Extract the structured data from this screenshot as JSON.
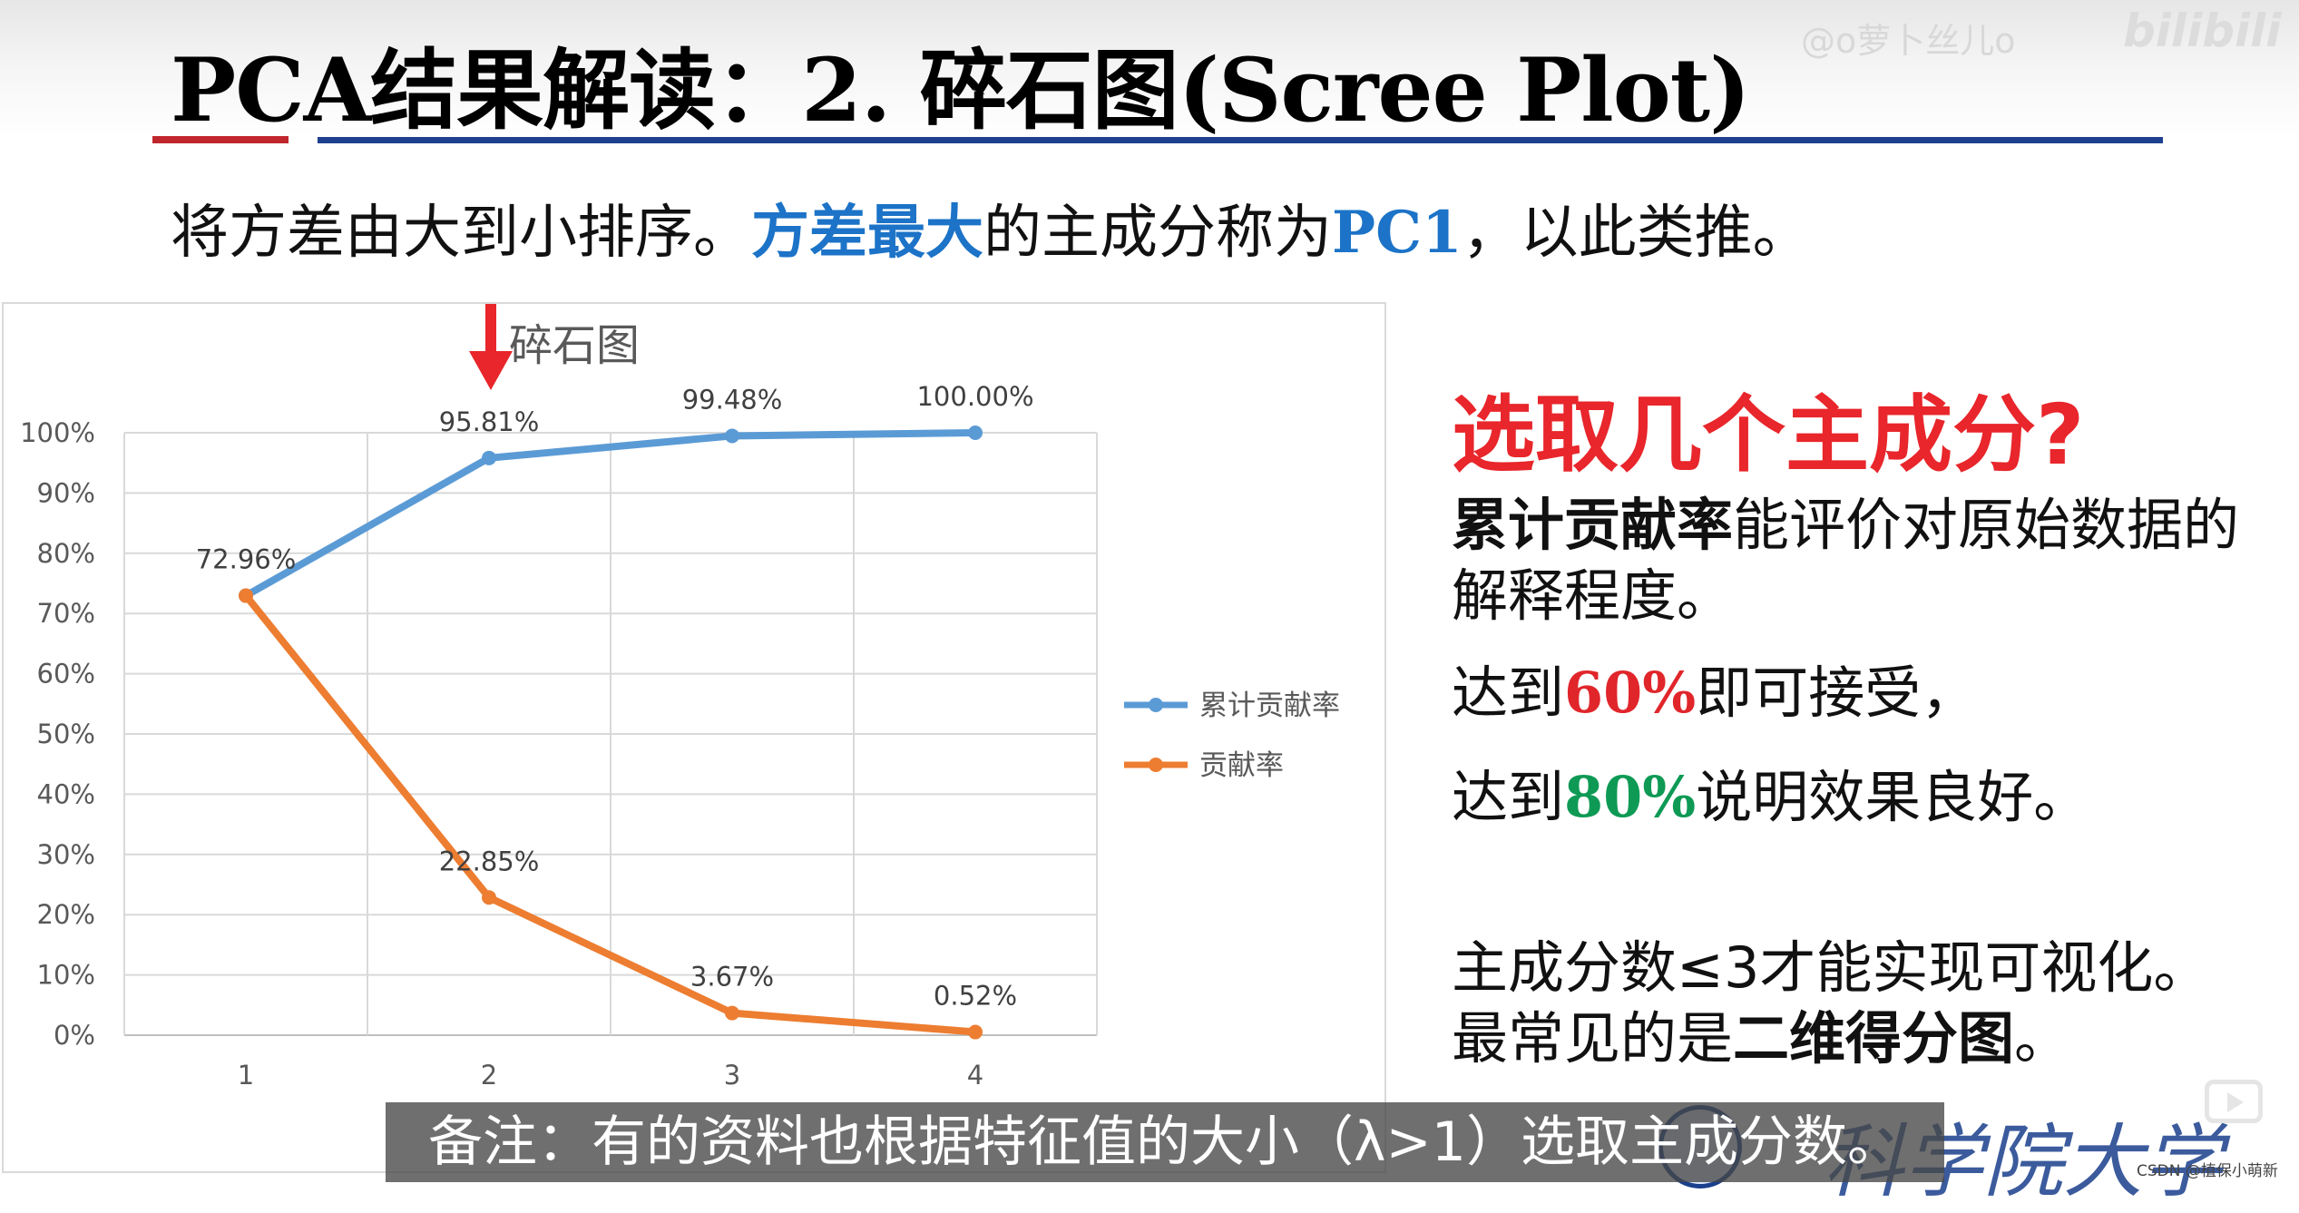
{
  "watermark": {
    "user": "@o萝卜丝儿o",
    "logo": "bilibili"
  },
  "slide": {
    "title": "PCA结果解读：2. 碎石图(Scree Plot)",
    "subtitle": {
      "part1": "将方差由大到小排序。",
      "highlight": "方差最大",
      "part2": "的主成分称为",
      "pc": "PC1",
      "part3": "，以此类推。"
    }
  },
  "accent_colors": {
    "title_red_rule": "#c0272d",
    "title_blue_rule": "#1f3f8f",
    "highlight_blue": "#1c73c7",
    "arrow_red": "#e8262b",
    "series_cumulative": "#5b9bd5",
    "series_contribution": "#ed7d31"
  },
  "chart_data": {
    "type": "line",
    "title": "碎石图",
    "x": [
      "1",
      "2",
      "3",
      "4"
    ],
    "yticks": [
      "0%",
      "10%",
      "20%",
      "30%",
      "40%",
      "50%",
      "60%",
      "70%",
      "80%",
      "90%",
      "100%"
    ],
    "ylim": [
      0,
      100
    ],
    "grid": true,
    "legend_position": "right",
    "series": [
      {
        "name": "累计贡献率",
        "values": [
          72.96,
          95.81,
          99.48,
          100.0
        ],
        "labels": [
          "72.96%",
          "95.81%",
          "99.48%",
          "100.00%"
        ],
        "color": "#5b9bd5"
      },
      {
        "name": "贡献率",
        "values": [
          72.96,
          22.85,
          3.67,
          0.52
        ],
        "labels": [
          "",
          "22.85%",
          "3.67%",
          "0.52%"
        ],
        "color": "#ed7d31"
      }
    ],
    "annotation": {
      "type": "arrow-down",
      "target_x": "2",
      "color": "#e8262b"
    }
  },
  "right_panel": {
    "question": "选取几个主成分?",
    "line1_bold": "累计贡献率",
    "line1_rest": "能评价对原始数据的",
    "line2": "解释程度。",
    "line3_pre": "达到",
    "line3_num": "60%",
    "line3_post": "即可接受，",
    "line4_pre": "达到",
    "line4_num": "80%",
    "line4_post": "说明效果良好。",
    "line5": "主成分数≤3才能实现可视化。",
    "line6_pre": "最常见的是",
    "line6_bold": "二维得分图",
    "line6_post": "。"
  },
  "caption": "备注：有的资料也根据特征值的大小（λ>1）选取主成分数。",
  "school_logo": "科学院大学",
  "csdn": "CSDN @植保小萌新"
}
